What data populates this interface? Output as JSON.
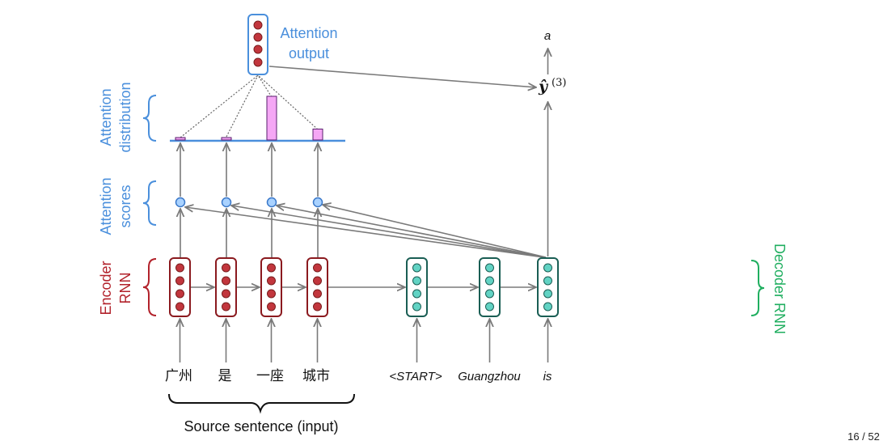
{
  "labels": {
    "attention_output": [
      "Attention",
      "output"
    ],
    "attention_distribution": [
      "Attention",
      "distribution"
    ],
    "attention_scores": [
      "Attention",
      "scores"
    ],
    "encoder_rnn": [
      "Encoder",
      "RNN"
    ],
    "decoder_rnn": "Decoder RNN",
    "source_sentence": "Source sentence (input)",
    "output_word": "a",
    "y_hat": "ŷ",
    "y_hat_sup": "(3)",
    "page_number": "16 / 52"
  },
  "source_words": [
    "广州",
    "是",
    "一座",
    "城市"
  ],
  "decoder_words": [
    "<START>",
    "Guangzhou",
    "is"
  ],
  "attention_distribution": [
    0.05,
    0.05,
    1.0,
    0.25
  ],
  "colors": {
    "encoder": "#b2222b",
    "encoder_dot": "#c2363d",
    "decoder": "#1a5e54",
    "decoder_dot": "#62d3c4",
    "attention": "#4a8fdc",
    "bar_fill": "#f5a7f5",
    "arrow": "#7a7a7a"
  }
}
